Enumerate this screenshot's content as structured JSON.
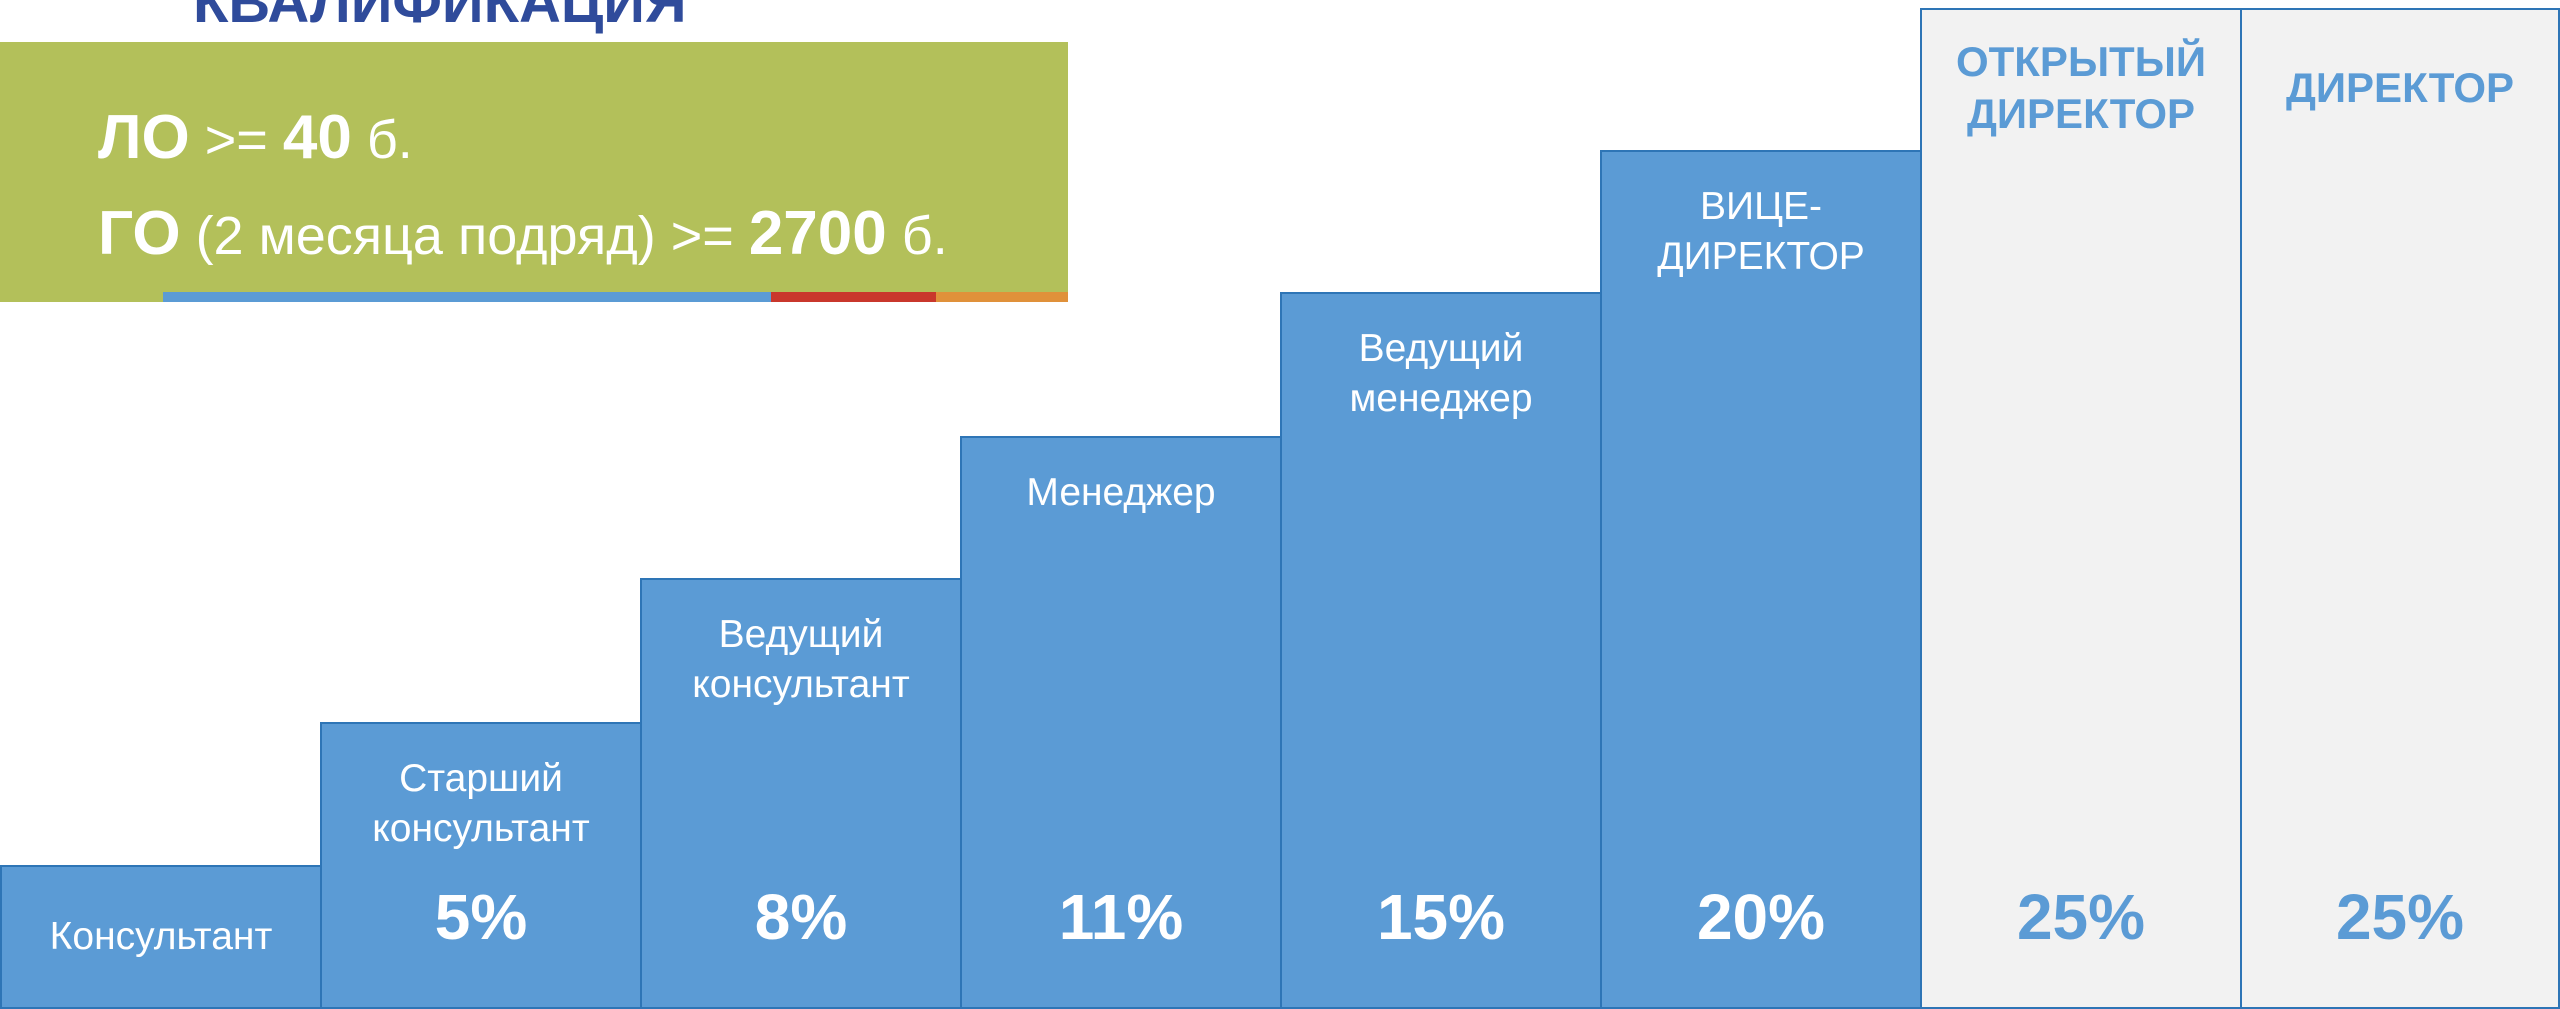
{
  "title": "КВАЛИФИКАЦИЯ",
  "qualifications": [
    {
      "label": "ЛО",
      "condition": ">=",
      "value": 40,
      "unit": "б."
    },
    {
      "label": "ГО",
      "note": "(2 месяца подряд)",
      "condition": ">=",
      "value": 2700,
      "unit": "б."
    }
  ],
  "steps": [
    {
      "label": [
        "Консультант"
      ]
    },
    {
      "label": [
        "Старший",
        "консультант"
      ],
      "percent": "5%"
    },
    {
      "label": [
        "Ведущий",
        "консультант"
      ],
      "percent": "8%"
    },
    {
      "label": [
        "Менеджер"
      ],
      "percent": "11%"
    },
    {
      "label": [
        "Ведущий",
        "менеджер"
      ],
      "percent": "15%"
    },
    {
      "label": [
        "ВИЦЕ-",
        "ДИРЕКТОР"
      ],
      "percent": "20%"
    },
    {
      "label": [
        "ОТКРЫТЫЙ",
        "ДИРЕКТОР"
      ],
      "percent": "25%",
      "highlight": true
    },
    {
      "label": [
        "ДИРЕКТОР"
      ],
      "percent": "25%",
      "highlight": true
    }
  ]
}
